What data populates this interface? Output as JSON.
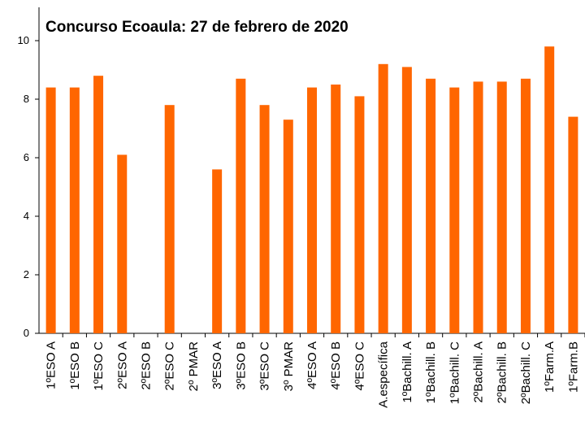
{
  "chart_data": {
    "type": "bar",
    "title": "Concurso Ecoaula: 27 de febrero de 2020",
    "xlabel": "",
    "ylabel": "",
    "ylim": [
      0,
      10
    ],
    "yticks": [
      0,
      2,
      4,
      6,
      8,
      10
    ],
    "grid": false,
    "legend": "none",
    "bar_color": "#FF6600",
    "categories": [
      "1ºESO A",
      "1ºESO B",
      "1ºESO C",
      "2ºESO A",
      "2ºESO B",
      "2ºESO C",
      "2º PMAR",
      "3ºESO A",
      "3ºESO B",
      "3ºESO C",
      "3º PMAR",
      "4ºESO A",
      "4ºESO B",
      "4ºESO C",
      "A.específica",
      "1ºBachill. A",
      "1ºBachill. B",
      "1ºBachill. C",
      "2ºBachill. A",
      "2ºBachill. B",
      "2ºBachill. C",
      "1ºFarm.A",
      "1ºFarm.B"
    ],
    "values": [
      8.4,
      8.4,
      8.8,
      6.1,
      0,
      7.8,
      0,
      5.6,
      8.7,
      7.8,
      7.3,
      8.4,
      8.5,
      8.1,
      9.2,
      9.1,
      8.7,
      8.4,
      8.6,
      8.6,
      8.7,
      9.8,
      7.4
    ]
  }
}
